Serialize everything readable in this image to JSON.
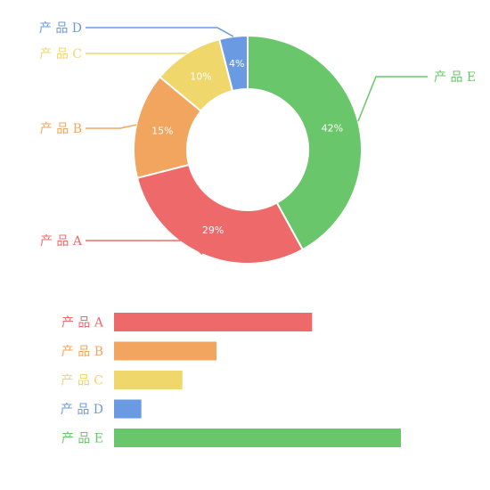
{
  "chart_data": [
    {
      "type": "pie",
      "variant": "donut",
      "categories": [
        "产品A",
        "产品B",
        "产品C",
        "产品D",
        "产品E"
      ],
      "values": [
        29,
        15,
        10,
        4,
        42
      ],
      "data_labels": [
        "29%",
        "15%",
        "10%",
        "4%",
        "42%"
      ],
      "legend_labels": [
        "产 品 A",
        "产 品 B",
        "产 品 C",
        "产 品 D",
        "产 品 E"
      ],
      "colors": [
        "#ee6a6a",
        "#f2a55e",
        "#efd76c",
        "#6a9ae2",
        "#6ac66a"
      ]
    },
    {
      "type": "bar",
      "orientation": "horizontal",
      "categories": [
        "产品A",
        "产品B",
        "产品C",
        "产品D",
        "产品E"
      ],
      "category_labels": [
        "产 品 A",
        "产 品 B",
        "产 品 C",
        "产 品 D",
        "产 品 E"
      ],
      "values": [
        29,
        15,
        10,
        4,
        42
      ],
      "colors": [
        "#ee6a6a",
        "#f2a55e",
        "#efd76c",
        "#6a9ae2",
        "#6ac66a"
      ]
    }
  ]
}
